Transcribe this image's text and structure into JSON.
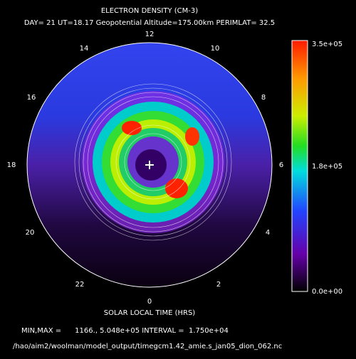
{
  "header": {
    "title": "ELECTRON DENSITY (CM-3)",
    "subtitle": "DAY= 21 UT=18.17 Geopotential Altitude=175.00km PERIMLAT= 32.5"
  },
  "hour_labels": [
    "12",
    "14",
    "10",
    "16",
    "8",
    "18",
    "6",
    "20",
    "4",
    "22",
    "2",
    "0"
  ],
  "colorbar": {
    "labels": [
      "3.5e+05",
      "1.8e+05",
      "0.0e+00"
    ]
  },
  "axis_label": "SOLAR LOCAL TIME (HRS)",
  "footer": {
    "stats": "MIN,MAX =      1166., 5.048e+05 INTERVAL =  1.750e+04",
    "file": "/hao/aim2/woolman/model_output/timegcm1.42_amie.s_jan05_dion_062.nc"
  }
}
